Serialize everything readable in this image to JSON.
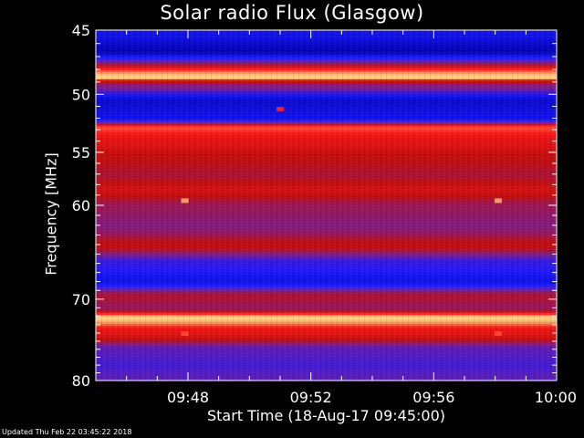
{
  "title": "Solar radio Flux (Glasgow)",
  "footer": "Updated Thu Feb 22 03:45:22 2018",
  "chart_data": {
    "type": "heatmap",
    "title": "Solar radio Flux (Glasgow)",
    "xlabel": "Start Time (18-Aug-17 09:45:00)",
    "ylabel": "Frequency [MHz]",
    "x_range": [
      "09:45:00",
      "10:00:00"
    ],
    "y_range": [
      45,
      80
    ],
    "y_ticks": [
      "45",
      "50",
      "55",
      "60",
      "70",
      "80"
    ],
    "x_ticks": [
      "09:48",
      "09:52",
      "09:56",
      "10:00"
    ],
    "x_tick_minutes": [
      3,
      7,
      11,
      15
    ],
    "colorscale": [
      "#0000a0",
      "#1a1aff",
      "#7020a0",
      "#c01010",
      "#ff1a1a",
      "#ffd080"
    ],
    "bands": [
      {
        "freq": 45.3,
        "intensity": 0.15
      },
      {
        "freq": 46.5,
        "intensity": 0.05
      },
      {
        "freq": 48.6,
        "intensity": 1.0
      },
      {
        "freq": 49.2,
        "intensity": 0.45
      },
      {
        "freq": 50.5,
        "intensity": 0.1
      },
      {
        "freq": 52.0,
        "intensity": 0.15
      },
      {
        "freq": 52.8,
        "intensity": 0.85
      },
      {
        "freq": 54.0,
        "intensity": 0.7
      },
      {
        "freq": 55.5,
        "intensity": 0.6
      },
      {
        "freq": 57.0,
        "intensity": 0.55
      },
      {
        "freq": 58.5,
        "intensity": 0.65
      },
      {
        "freq": 60.0,
        "intensity": 0.5
      },
      {
        "freq": 62.0,
        "intensity": 0.45
      },
      {
        "freq": 64.0,
        "intensity": 0.6
      },
      {
        "freq": 66.0,
        "intensity": 0.25
      },
      {
        "freq": 68.0,
        "intensity": 0.15
      },
      {
        "freq": 69.5,
        "intensity": 0.55
      },
      {
        "freq": 71.0,
        "intensity": 0.5
      },
      {
        "freq": 72.2,
        "intensity": 1.0
      },
      {
        "freq": 74.0,
        "intensity": 0.7
      },
      {
        "freq": 76.0,
        "intensity": 0.35
      },
      {
        "freq": 78.0,
        "intensity": 0.3
      },
      {
        "freq": 79.5,
        "intensity": 0.35
      }
    ],
    "spots": [
      {
        "time_min": 2.9,
        "freq": 59.5,
        "intensity": 0.95
      },
      {
        "time_min": 13.1,
        "freq": 59.5,
        "intensity": 0.95
      },
      {
        "time_min": 6.0,
        "freq": 51.2,
        "intensity": 0.8
      },
      {
        "time_min": 2.9,
        "freq": 74.0,
        "intensity": 0.85
      },
      {
        "time_min": 13.1,
        "freq": 74.0,
        "intensity": 0.85
      }
    ]
  }
}
